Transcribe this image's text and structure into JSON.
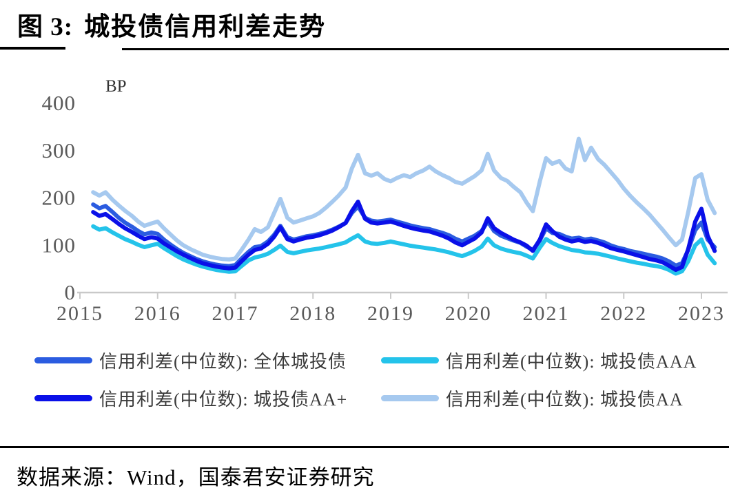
{
  "figure": {
    "label": "图 3:",
    "title": "城投债信用利差走势"
  },
  "footer": {
    "source_text": "数据来源：Wind，国泰君安证券研究"
  },
  "colors": {
    "overall": "#2b5ce0",
    "aaa": "#24c3ea",
    "aa_plus": "#0a10e8",
    "aa": "#a6c9ef",
    "axis_line": "#c9c9c9",
    "tick_text": "#595959",
    "rule": "#000000"
  },
  "chart_data": {
    "type": "line",
    "title": "城投债信用利差走势",
    "unit_label": "BP",
    "xlabel": "",
    "ylabel": "BP",
    "ylim": [
      0,
      400
    ],
    "y_ticks": [
      0,
      100,
      200,
      300,
      400
    ],
    "x_ticks": [
      2015,
      2016,
      2017,
      2018,
      2019,
      2020,
      2021,
      2022,
      2023
    ],
    "xlim": [
      2015,
      2023.35
    ],
    "grid": false,
    "legend_position": "bottom",
    "x": [
      2015.17,
      2015.25,
      2015.33,
      2015.42,
      2015.5,
      2015.58,
      2015.67,
      2015.75,
      2015.83,
      2015.92,
      2016.0,
      2016.08,
      2016.17,
      2016.25,
      2016.33,
      2016.42,
      2016.5,
      2016.58,
      2016.67,
      2016.75,
      2016.83,
      2016.92,
      2017.0,
      2017.08,
      2017.17,
      2017.25,
      2017.33,
      2017.42,
      2017.5,
      2017.58,
      2017.67,
      2017.75,
      2017.83,
      2017.92,
      2018.0,
      2018.08,
      2018.17,
      2018.25,
      2018.33,
      2018.42,
      2018.5,
      2018.58,
      2018.67,
      2018.75,
      2018.83,
      2018.92,
      2019.0,
      2019.08,
      2019.17,
      2019.25,
      2019.33,
      2019.42,
      2019.5,
      2019.58,
      2019.67,
      2019.75,
      2019.83,
      2019.92,
      2020.0,
      2020.08,
      2020.17,
      2020.25,
      2020.33,
      2020.42,
      2020.5,
      2020.58,
      2020.67,
      2020.75,
      2020.83,
      2020.92,
      2021.0,
      2021.08,
      2021.17,
      2021.25,
      2021.33,
      2021.42,
      2021.5,
      2021.58,
      2021.67,
      2021.75,
      2021.83,
      2021.92,
      2022.0,
      2022.08,
      2022.17,
      2022.25,
      2022.33,
      2022.42,
      2022.5,
      2022.58,
      2022.67,
      2022.75,
      2022.83,
      2022.92,
      2023.0,
      2023.08,
      2023.17
    ],
    "series": [
      {
        "name": "信用利差(中位数): 全体城投债",
        "color": "#2b5ce0",
        "values": [
          186,
          178,
          183,
          170,
          158,
          148,
          139,
          130,
          123,
          127,
          124,
          112,
          101,
          92,
          84,
          77,
          71,
          66,
          62,
          59,
          57,
          56,
          58,
          72,
          86,
          96,
          98,
          108,
          122,
          141,
          117,
          112,
          115,
          119,
          121,
          124,
          128,
          133,
          139,
          147,
          168,
          182,
          158,
          152,
          150,
          152,
          154,
          150,
          146,
          142,
          139,
          136,
          134,
          130,
          126,
          121,
          114,
          108,
          114,
          120,
          130,
          150,
          130,
          120,
          115,
          110,
          105,
          97,
          90,
          110,
          136,
          126,
          124,
          118,
          114,
          116,
          112,
          114,
          110,
          106,
          100,
          95,
          92,
          88,
          85,
          82,
          79,
          76,
          72,
          66,
          57,
          62,
          90,
          132,
          148,
          112,
          96
        ]
      },
      {
        "name": "信用利差(中位数): 城投债AAA",
        "color": "#24c3ea",
        "values": [
          140,
          133,
          136,
          127,
          120,
          113,
          107,
          101,
          96,
          100,
          103,
          94,
          85,
          77,
          70,
          64,
          59,
          55,
          51,
          48,
          46,
          44,
          45,
          56,
          68,
          74,
          77,
          82,
          90,
          99,
          86,
          83,
          86,
          89,
          91,
          93,
          96,
          99,
          102,
          106,
          114,
          121,
          108,
          104,
          103,
          105,
          108,
          105,
          102,
          99,
          97,
          95,
          93,
          91,
          88,
          85,
          81,
          77,
          82,
          88,
          97,
          114,
          100,
          93,
          89,
          86,
          83,
          78,
          72,
          95,
          113,
          105,
          98,
          94,
          90,
          88,
          85,
          84,
          82,
          79,
          76,
          72,
          69,
          66,
          63,
          61,
          58,
          56,
          53,
          48,
          40,
          45,
          66,
          100,
          112,
          80,
          62
        ]
      },
      {
        "name": "信用利差(中位数): 城投债AA+",
        "color": "#0a10e8",
        "values": [
          170,
          162,
          166,
          155,
          145,
          136,
          128,
          120,
          113,
          117,
          114,
          104,
          95,
          87,
          80,
          73,
          67,
          62,
          58,
          55,
          53,
          51,
          53,
          66,
          80,
          90,
          93,
          103,
          118,
          138,
          113,
          108,
          112,
          116,
          118,
          121,
          126,
          131,
          138,
          147,
          172,
          192,
          156,
          148,
          146,
          148,
          150,
          146,
          141,
          137,
          134,
          131,
          129,
          125,
          120,
          114,
          106,
          100,
          107,
          114,
          127,
          157,
          136,
          126,
          119,
          112,
          106,
          99,
          88,
          112,
          144,
          130,
          118,
          112,
          108,
          111,
          107,
          109,
          105,
          100,
          94,
          90,
          87,
          83,
          79,
          75,
          71,
          68,
          64,
          57,
          48,
          54,
          92,
          150,
          177,
          120,
          88
        ]
      },
      {
        "name": "信用利差(中位数): 城投债AA",
        "color": "#a6c9ef",
        "values": [
          212,
          205,
          212,
          196,
          184,
          173,
          162,
          150,
          141,
          146,
          150,
          136,
          122,
          110,
          100,
          92,
          86,
          80,
          76,
          73,
          71,
          70,
          72,
          90,
          112,
          134,
          128,
          138,
          168,
          198,
          158,
          148,
          152,
          157,
          161,
          168,
          180,
          192,
          205,
          222,
          262,
          291,
          252,
          247,
          252,
          240,
          235,
          242,
          248,
          244,
          252,
          258,
          266,
          256,
          248,
          242,
          234,
          230,
          238,
          246,
          258,
          293,
          258,
          242,
          236,
          224,
          212,
          190,
          172,
          235,
          284,
          272,
          278,
          262,
          256,
          325,
          280,
          306,
          282,
          270,
          255,
          238,
          220,
          205,
          190,
          178,
          165,
          148,
          133,
          117,
          100,
          112,
          170,
          242,
          250,
          196,
          168
        ]
      }
    ]
  }
}
